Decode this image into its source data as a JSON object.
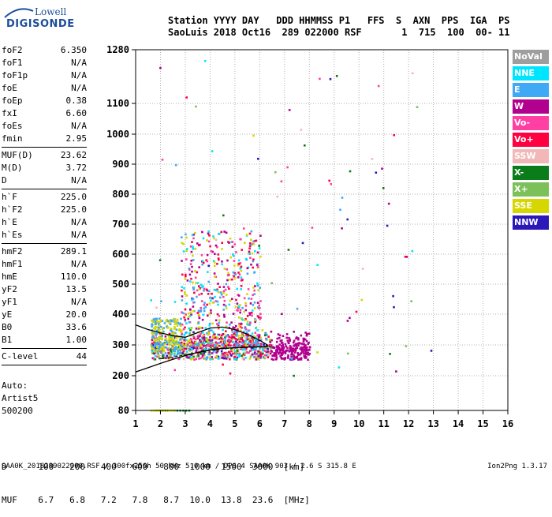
{
  "logo": {
    "line1": "Lowell",
    "line2": "DIGISONDE"
  },
  "header": {
    "line1": "Station YYYY DAY   DDD HHMMSS P1   FFS  S  AXN  PPS  IGA  PS",
    "line2": "SaoLuis 2018 Oct16  289 022000 RSF       1  715  100  00- 11"
  },
  "params": [
    {
      "label": "foF2",
      "value": "6.350"
    },
    {
      "label": "foF1",
      "value": "N/A"
    },
    {
      "label": "foF1p",
      "value": "N/A"
    },
    {
      "label": "foE",
      "value": "N/A"
    },
    {
      "label": "foEp",
      "value": "0.38"
    },
    {
      "label": "fxI",
      "value": "6.60"
    },
    {
      "label": "foEs",
      "value": "N/A"
    },
    {
      "label": "fmin",
      "value": "2.95",
      "sep": true
    },
    {
      "label": "MUF(D)",
      "value": "23.62"
    },
    {
      "label": "M(D)",
      "value": "3.72"
    },
    {
      "label": "D",
      "value": "N/A",
      "sep": true
    },
    {
      "label": "h`F",
      "value": "225.0"
    },
    {
      "label": "h`F2",
      "value": "225.0"
    },
    {
      "label": "h`E",
      "value": "N/A"
    },
    {
      "label": "h`Es",
      "value": "N/A",
      "sep": true
    },
    {
      "label": "hmF2",
      "value": "289.1"
    },
    {
      "label": "hmF1",
      "value": "N/A"
    },
    {
      "label": "hmE",
      "value": "110.0"
    },
    {
      "label": "yF2",
      "value": "13.5"
    },
    {
      "label": "yF1",
      "value": "N/A"
    },
    {
      "label": "yE",
      "value": "20.0"
    },
    {
      "label": "B0",
      "value": "33.6"
    },
    {
      "label": "B1",
      "value": "1.00",
      "sep": true
    },
    {
      "label": "C-level",
      "value": "44",
      "sep": true
    }
  ],
  "auto": {
    "line1": "Auto:",
    "line2": "Artist5",
    "line3": "500200"
  },
  "legend": [
    {
      "label": "NoVal",
      "color": "#9e9e9e"
    },
    {
      "label": "NNE",
      "color": "#00e5ff"
    },
    {
      "label": "E",
      "color": "#3fa9f5"
    },
    {
      "label": "W",
      "color": "#b2008f"
    },
    {
      "label": "Vo-",
      "color": "#ff3fa3"
    },
    {
      "label": "Vo+",
      "color": "#ff0040"
    },
    {
      "label": "SSW",
      "color": "#f2b8b8"
    },
    {
      "label": "X-",
      "color": "#0a7d1a"
    },
    {
      "label": "X+",
      "color": "#7cc05a"
    },
    {
      "label": "SSE",
      "color": "#d6d600"
    },
    {
      "label": "NNW",
      "color": "#2a18b8"
    }
  ],
  "table": {
    "line1": "D      100   200   400   600   800  1000  1500  3000  [km]",
    "line2": "MUF    6.7   6.8   7.2   7.8   8.7  10.0  13.8  23.6  [MHz]"
  },
  "footer": "SAA0K_2018289022000.RSF / 300fx256h 50 kHz 5.0 km / DPS-4 SAA0K 903 / 2.6 S 315.8 E",
  "version": "Ion2Png 1.3.17",
  "chart_data": {
    "type": "scatter",
    "xlim": [
      1,
      16
    ],
    "x_ticks": [
      1,
      2,
      3,
      4,
      5,
      6,
      7,
      8,
      9,
      10,
      11,
      12,
      13,
      14,
      15,
      16
    ],
    "y_ticks": [
      80,
      200,
      300,
      400,
      500,
      600,
      700,
      800,
      900,
      1000,
      1100,
      1280
    ],
    "grid": true,
    "profile_curve": [
      [
        1.0,
        212
      ],
      [
        1.5,
        226
      ],
      [
        2.0,
        240
      ],
      [
        2.5,
        253
      ],
      [
        3.0,
        265
      ],
      [
        3.5,
        276
      ],
      [
        4.0,
        284
      ],
      [
        4.5,
        289
      ],
      [
        5.0,
        291
      ],
      [
        5.5,
        293
      ],
      [
        6.0,
        294
      ],
      [
        6.35,
        295
      ]
    ],
    "virtual_height_curve": [
      [
        1.0,
        365
      ],
      [
        1.5,
        350
      ],
      [
        2.0,
        339
      ],
      [
        2.5,
        330
      ],
      [
        3.0,
        325
      ],
      [
        3.5,
        340
      ],
      [
        4.0,
        355
      ],
      [
        4.5,
        358
      ],
      [
        5.0,
        350
      ],
      [
        5.5,
        335
      ],
      [
        6.0,
        315
      ],
      [
        6.35,
        298
      ]
    ],
    "x_trace_curve": [
      [
        2.0,
        255
      ],
      [
        2.5,
        260
      ],
      [
        3.0,
        268
      ],
      [
        3.5,
        275
      ],
      [
        4.0,
        282
      ],
      [
        4.5,
        288
      ],
      [
        5.0,
        290
      ],
      [
        5.5,
        292
      ],
      [
        6.0,
        293
      ],
      [
        6.6,
        294
      ]
    ]
  }
}
